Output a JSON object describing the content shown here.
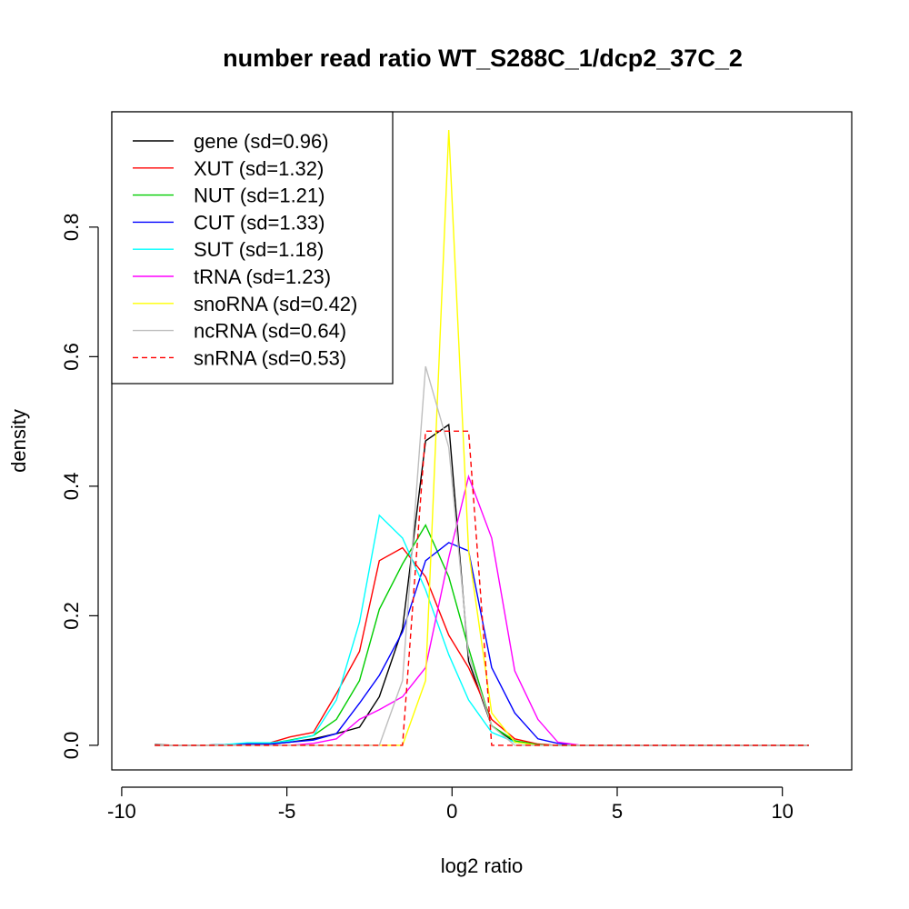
{
  "chart_data": {
    "type": "line",
    "title": "number read ratio WT_S288C_1/dcp2_37C_2",
    "xlabel": "log2 ratio",
    "ylabel": "density",
    "xlim": [
      -10.3,
      12.1
    ],
    "ylim": [
      -0.038,
      0.978
    ],
    "xticks": [
      -10,
      -5,
      0,
      5,
      10
    ],
    "yticks": [
      0.0,
      0.2,
      0.4,
      0.6,
      0.8
    ],
    "xtick_labels": [
      "-10",
      "-5",
      "0",
      "5",
      "10"
    ],
    "ytick_labels": [
      "0.0",
      "0.2",
      "0.4",
      "0.6",
      "0.8"
    ],
    "grid": false,
    "legend_position": "top-left",
    "series": [
      {
        "name": "gene (sd=0.96)",
        "color": "#000000",
        "dash": "solid",
        "x": [
          -9.0,
          -8.3,
          -7.6,
          -6.9,
          -6.2,
          -5.5,
          -4.9,
          -4.2,
          -3.5,
          -2.8,
          -2.2,
          -1.5,
          -0.8,
          -0.1,
          0.5,
          1.2,
          1.9,
          2.6,
          3.2,
          3.9,
          4.6,
          5.3,
          6.0,
          10.8
        ],
        "y": [
          0.001,
          0.0,
          0.0,
          0.0,
          0.001,
          0.002,
          0.005,
          0.01,
          0.018,
          0.028,
          0.075,
          0.18,
          0.47,
          0.495,
          0.13,
          0.03,
          0.005,
          0.001,
          0.0,
          0.0,
          0.0,
          0.0,
          0.0,
          0.0
        ]
      },
      {
        "name": "XUT (sd=1.32)",
        "color": "#ff0000",
        "dash": "solid",
        "x": [
          -9.0,
          -7.6,
          -6.9,
          -6.2,
          -5.5,
          -4.9,
          -4.2,
          -3.5,
          -2.8,
          -2.2,
          -1.5,
          -0.8,
          -0.1,
          0.5,
          1.2,
          1.9,
          2.6,
          3.2,
          3.9,
          10.8
        ],
        "y": [
          0.0,
          0.0,
          0.001,
          0.003,
          0.004,
          0.013,
          0.02,
          0.08,
          0.145,
          0.285,
          0.305,
          0.26,
          0.17,
          0.12,
          0.04,
          0.01,
          0.002,
          0.0,
          0.0,
          0.0
        ]
      },
      {
        "name": "NUT (sd=1.21)",
        "color": "#00cd00",
        "dash": "solid",
        "x": [
          -9.0,
          -7.6,
          -6.9,
          -6.2,
          -5.5,
          -4.9,
          -4.2,
          -3.5,
          -2.8,
          -2.2,
          -1.5,
          -0.8,
          -0.1,
          0.5,
          1.2,
          1.9,
          2.6,
          3.2,
          3.9,
          10.8
        ],
        "y": [
          0.0,
          0.0,
          0.001,
          0.002,
          0.003,
          0.008,
          0.015,
          0.04,
          0.1,
          0.21,
          0.28,
          0.34,
          0.26,
          0.15,
          0.03,
          0.007,
          0.001,
          0.0,
          0.0,
          0.0
        ]
      },
      {
        "name": "CUT (sd=1.33)",
        "color": "#0000ff",
        "dash": "solid",
        "x": [
          -9.0,
          -7.6,
          -6.9,
          -6.2,
          -5.5,
          -4.9,
          -4.2,
          -3.5,
          -2.8,
          -2.2,
          -1.5,
          -0.8,
          -0.1,
          0.5,
          1.2,
          1.9,
          2.6,
          3.2,
          3.9,
          10.8
        ],
        "y": [
          0.0,
          0.0,
          0.001,
          0.002,
          0.002,
          0.005,
          0.008,
          0.018,
          0.065,
          0.108,
          0.175,
          0.285,
          0.313,
          0.3,
          0.12,
          0.05,
          0.01,
          0.003,
          0.0,
          0.0
        ]
      },
      {
        "name": "SUT (sd=1.18)",
        "color": "#00ffff",
        "dash": "solid",
        "x": [
          -9.0,
          -7.6,
          -6.9,
          -6.2,
          -5.5,
          -4.9,
          -4.2,
          -3.5,
          -2.8,
          -2.2,
          -1.5,
          -0.8,
          -0.1,
          0.5,
          1.2,
          1.9,
          2.6,
          3.2,
          3.9,
          10.8
        ],
        "y": [
          0.0,
          0.0,
          0.001,
          0.004,
          0.004,
          0.007,
          0.015,
          0.07,
          0.19,
          0.355,
          0.32,
          0.24,
          0.14,
          0.07,
          0.02,
          0.005,
          0.0,
          0.0,
          0.0,
          0.0
        ]
      },
      {
        "name": "tRNA (sd=1.23)",
        "color": "#ff00ff",
        "dash": "solid",
        "x": [
          -9.0,
          -4.9,
          -4.2,
          -3.5,
          -2.8,
          -2.2,
          -1.5,
          -0.8,
          -0.1,
          0.5,
          1.2,
          1.9,
          2.6,
          3.2,
          3.9,
          10.8
        ],
        "y": [
          0.0,
          0.0,
          0.003,
          0.01,
          0.04,
          0.055,
          0.075,
          0.12,
          0.29,
          0.415,
          0.32,
          0.115,
          0.04,
          0.005,
          0.0,
          0.0
        ]
      },
      {
        "name": "snoRNA (sd=0.42)",
        "color": "#ffff00",
        "dash": "solid",
        "x": [
          -9.0,
          -1.5,
          -0.8,
          -0.1,
          0.5,
          1.2,
          1.9,
          2.6,
          10.8
        ],
        "y": [
          0.0,
          0.0,
          0.1,
          0.95,
          0.3,
          0.05,
          0.005,
          0.0,
          0.0
        ]
      },
      {
        "name": "ncRNA (sd=0.64)",
        "color": "#bebebe",
        "dash": "solid",
        "x": [
          -9.0,
          -2.2,
          -1.5,
          -0.8,
          -0.1,
          0.5,
          1.2,
          1.9,
          10.8
        ],
        "y": [
          0.0,
          0.0,
          0.1,
          0.585,
          0.46,
          0.14,
          0.03,
          0.0,
          0.0
        ]
      },
      {
        "name": "snRNA (sd=0.53)",
        "color": "#ff0000",
        "dash": "dashed",
        "x": [
          -9.0,
          -1.5,
          -0.8,
          -0.1,
          0.5,
          1.2,
          10.8
        ],
        "y": [
          0.0,
          0.0,
          0.485,
          0.485,
          0.485,
          0.0,
          0.0
        ]
      }
    ]
  }
}
